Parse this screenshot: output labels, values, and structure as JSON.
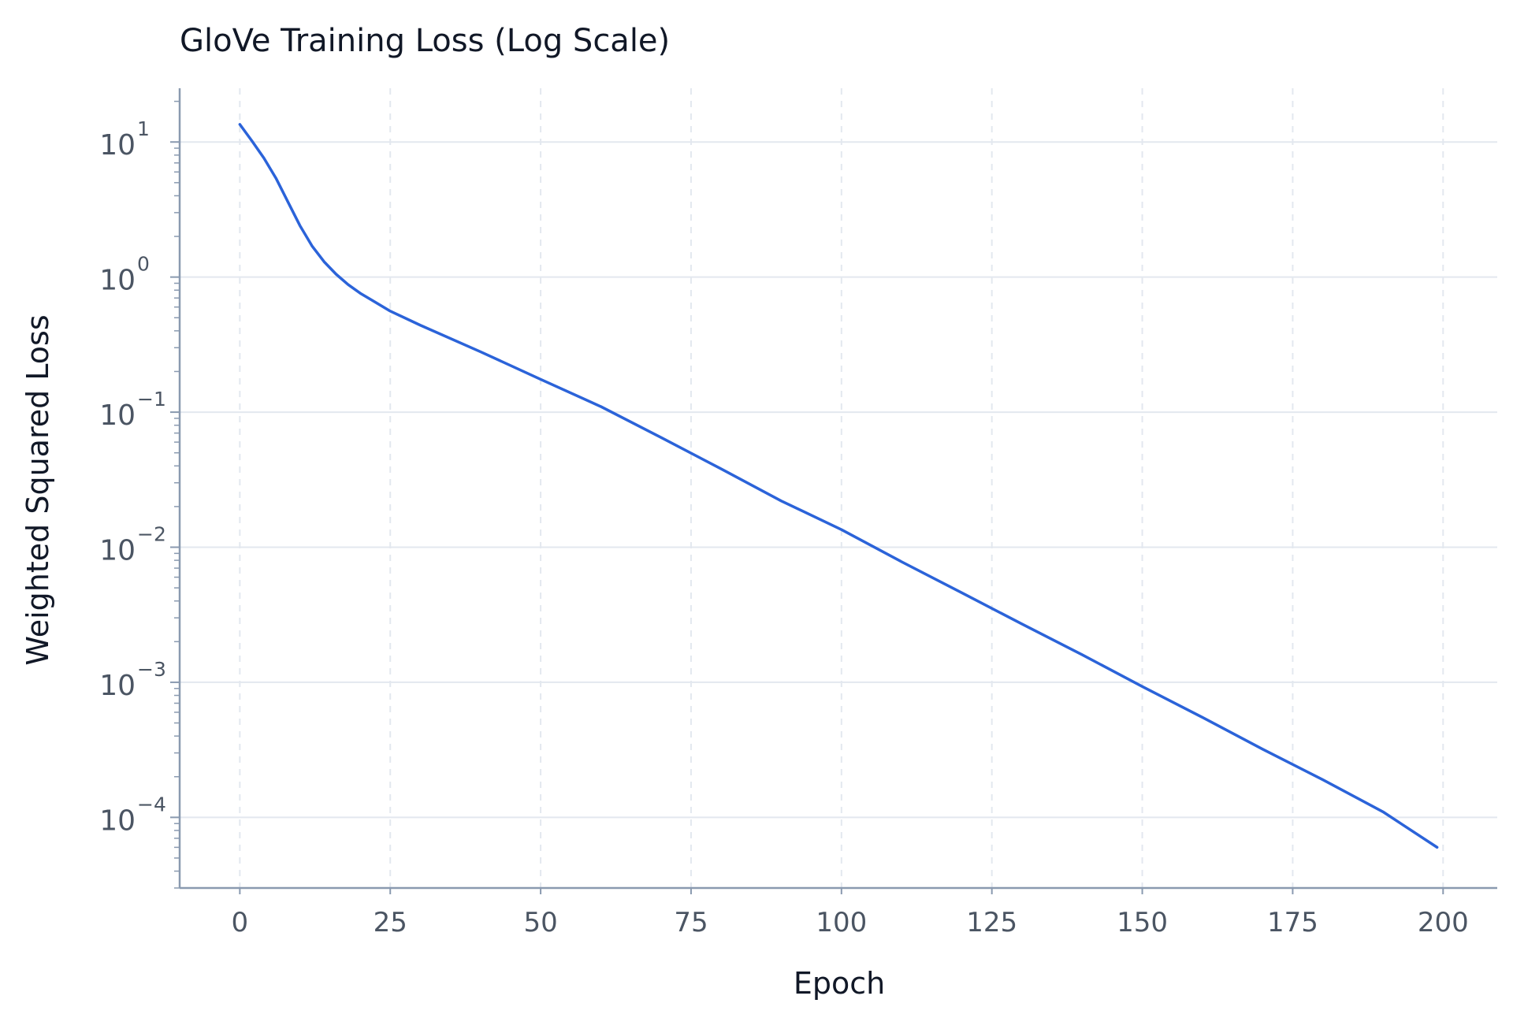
{
  "chart_data": {
    "type": "line",
    "title": "GloVe Training Loss (Log Scale)",
    "xlabel": "Epoch",
    "ylabel": "Weighted Squared Loss",
    "x_scale": "linear",
    "y_scale": "log",
    "xlim": [
      -10,
      209
    ],
    "ylim": [
      3e-05,
      25
    ],
    "x_ticks": [
      0,
      25,
      50,
      75,
      100,
      125,
      150,
      175,
      200
    ],
    "x_tick_labels": [
      "0",
      "25",
      "50",
      "75",
      "100",
      "125",
      "150",
      "175",
      "200"
    ],
    "y_ticks": [
      0.0001,
      0.001,
      0.01,
      0.1,
      1,
      10
    ],
    "y_tick_labels": [
      {
        "base": "10",
        "exp": "−4"
      },
      {
        "base": "10",
        "exp": "−3"
      },
      {
        "base": "10",
        "exp": "−2"
      },
      {
        "base": "10",
        "exp": "−1"
      },
      {
        "base": "10",
        "exp": "0"
      },
      {
        "base": "10",
        "exp": "1"
      }
    ],
    "grid": true,
    "legend": "none",
    "series": [
      {
        "color": "#2b63d9",
        "x": [
          0,
          2,
          4,
          6,
          8,
          10,
          12,
          14,
          16,
          18,
          20,
          25,
          30,
          40,
          50,
          60,
          70,
          80,
          90,
          100,
          110,
          120,
          130,
          140,
          150,
          160,
          170,
          180,
          190,
          199
        ],
        "y": [
          13.5,
          10.2,
          7.6,
          5.4,
          3.6,
          2.4,
          1.7,
          1.3,
          1.05,
          0.88,
          0.76,
          0.56,
          0.44,
          0.28,
          0.175,
          0.11,
          0.065,
          0.038,
          0.022,
          0.0135,
          0.0078,
          0.0046,
          0.0027,
          0.0016,
          0.00093,
          0.00055,
          0.00032,
          0.00019,
          0.00011,
          6e-05
        ]
      }
    ],
    "colors": {
      "line": "#2b63d9",
      "grid": "#e3e8ef",
      "axis": "#8a9ab0",
      "tick_text": "#4b5563",
      "title_text": "#111827"
    }
  }
}
